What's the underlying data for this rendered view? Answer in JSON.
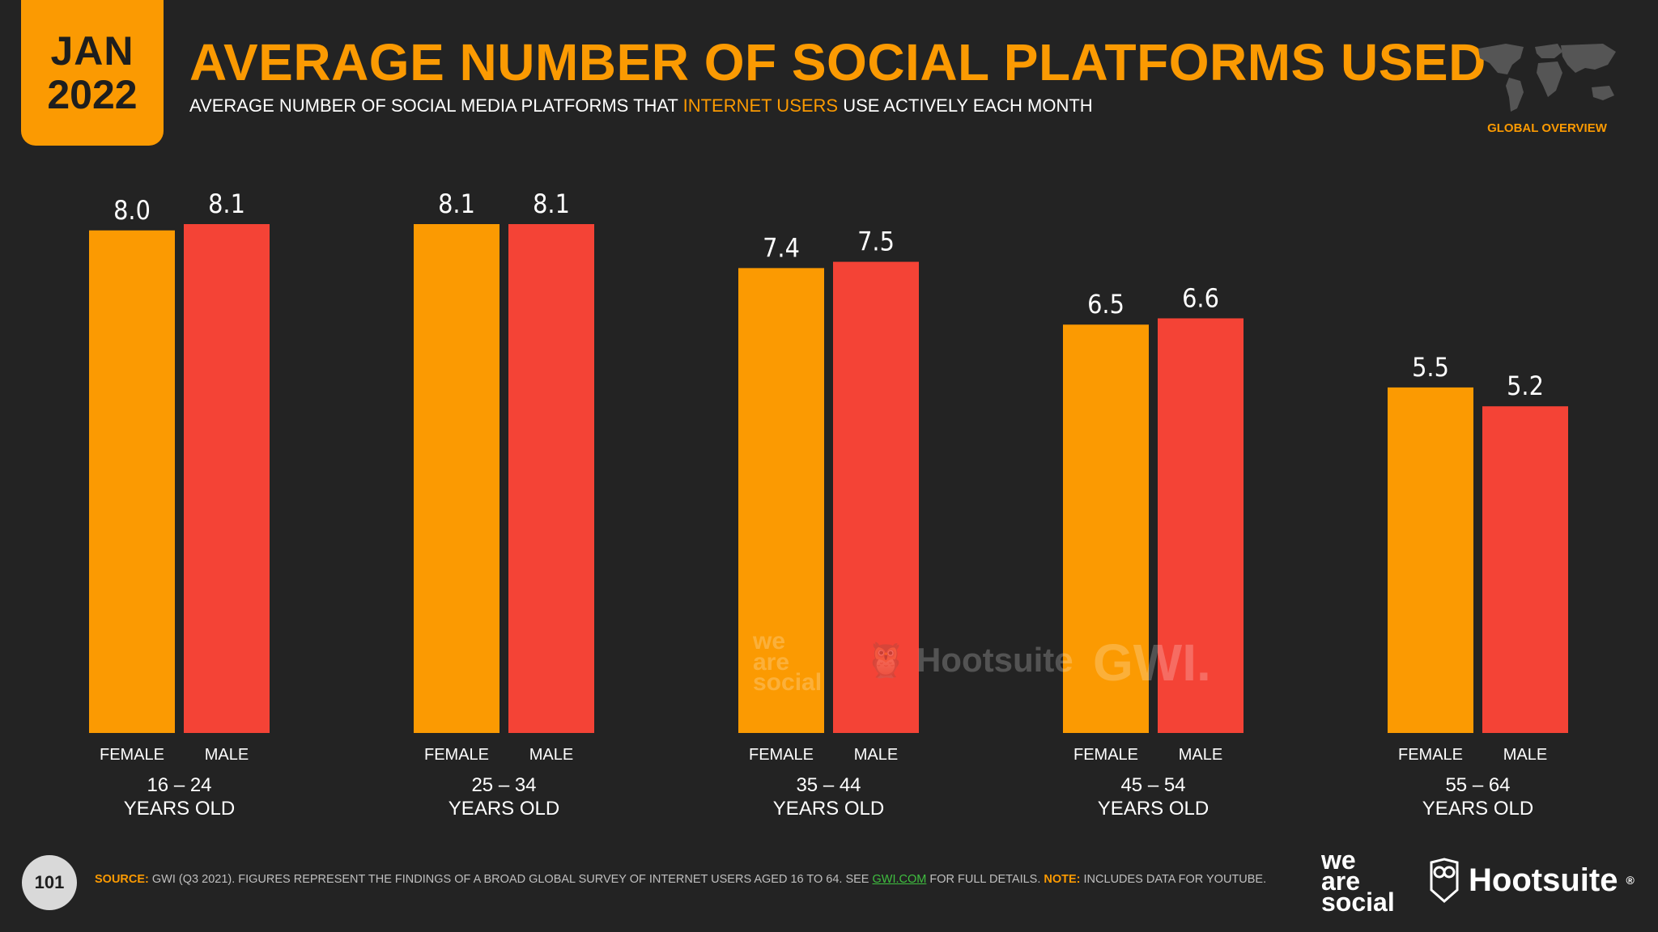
{
  "header": {
    "month": "JAN",
    "year": "2022",
    "title": "AVERAGE NUMBER OF SOCIAL PLATFORMS USED",
    "subtitle_pre": "AVERAGE NUMBER OF SOCIAL MEDIA PLATFORMS THAT ",
    "subtitle_highlight": "INTERNET USERS",
    "subtitle_post": " USE ACTIVELY EACH MONTH",
    "region": "GLOBAL OVERVIEW"
  },
  "colors": {
    "female": "#fb9a02",
    "male": "#f44336",
    "accent": "#fb9a02",
    "background": "#232323"
  },
  "chart_data": {
    "type": "bar",
    "title": "AVERAGE NUMBER OF SOCIAL PLATFORMS USED",
    "categories": [
      "16 – 24 YEARS OLD",
      "25 – 34 YEARS OLD",
      "35 – 44 YEARS OLD",
      "45 – 54 YEARS OLD",
      "55 – 64 YEARS OLD"
    ],
    "groups": [
      {
        "line1": "16 – 24",
        "line2": "YEARS OLD"
      },
      {
        "line1": "25 – 34",
        "line2": "YEARS OLD"
      },
      {
        "line1": "35 – 44",
        "line2": "YEARS OLD"
      },
      {
        "line1": "45 – 54",
        "line2": "YEARS OLD"
      },
      {
        "line1": "55 – 64",
        "line2": "YEARS OLD"
      }
    ],
    "series": [
      {
        "name": "FEMALE",
        "values": [
          8.0,
          8.1,
          7.4,
          6.5,
          5.5
        ]
      },
      {
        "name": "MALE",
        "values": [
          8.1,
          8.1,
          7.5,
          6.6,
          5.2
        ]
      }
    ],
    "ylim": [
      0,
      8.1
    ],
    "grid": false,
    "xlabel": "",
    "ylabel": ""
  },
  "watermark": {
    "we": "we",
    "are": "are",
    "social": "social",
    "hootsuite": "Hootsuite",
    "gwi": "GWI."
  },
  "footer": {
    "page": "101",
    "source_label": "SOURCE:",
    "source_text": " GWI (Q3 2021). FIGURES REPRESENT THE FINDINGS OF A BROAD GLOBAL SURVEY OF INTERNET USERS AGED 16 TO 64. SEE ",
    "source_link": "GWI.COM",
    "source_text2": " FOR FULL DETAILS. ",
    "note_label": "NOTE:",
    "note_text": " INCLUDES DATA FOR YOUTUBE.",
    "brand1_line1": "we",
    "brand1_line2": "are",
    "brand1_line3": "social",
    "brand2": "Hootsuite",
    "brand2_mark": "®"
  }
}
